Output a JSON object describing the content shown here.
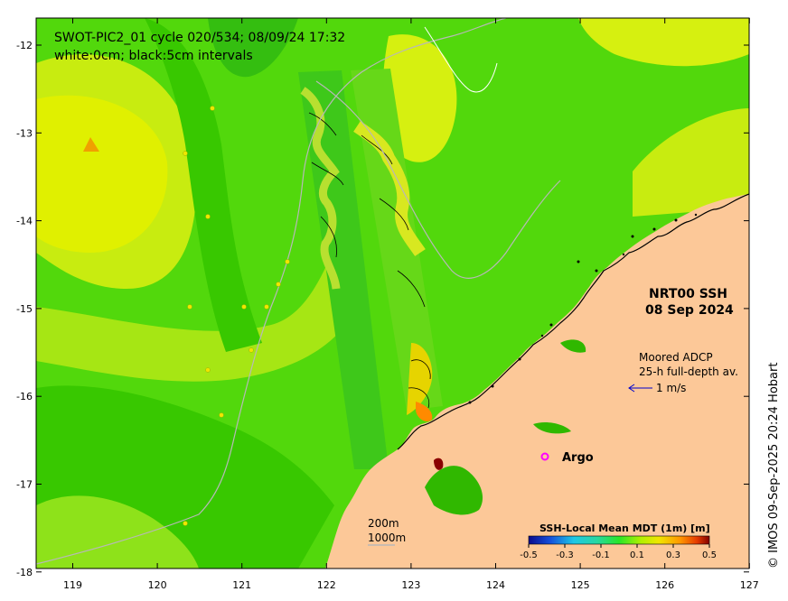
{
  "map": {
    "title_line1": "SWOT-PIC2_01 cycle 020/534; 08/09/24 17:32",
    "title_line2": "white:0cm; black:5cm intervals",
    "product": "NRT00 SSH",
    "date": "08 Sep 2024",
    "adcp_line1": "Moored ADCP",
    "adcp_line2": "25-h full-depth av.",
    "adcp_scale": "1 m/s",
    "argo_label": "Argo",
    "bathy_200": "200m",
    "bathy_1000": "1000m",
    "credit": "© IMOS 09-Sep-2025 20:24 Hobart",
    "x_ticks": [
      "119",
      "120",
      "121",
      "122",
      "123",
      "124",
      "125",
      "126",
      "127"
    ],
    "y_ticks": [
      "-12",
      "-13",
      "-14",
      "-15",
      "-16",
      "-17",
      "-18"
    ],
    "colors": {
      "land": "#fcc898",
      "sea_green": "#44d400",
      "sea_yellow": "#d8f000",
      "accent_argo": "#ff00ff",
      "adcp_arrow": "#0000cc"
    }
  },
  "colorbar": {
    "title": "SSH-Local Mean MDT (1m) [m]",
    "ticks": [
      "-0.5",
      "-0.3",
      "-0.1",
      "0.1",
      "0.3",
      "0.5"
    ],
    "values": [
      -0.5,
      -0.3,
      -0.1,
      0.1,
      0.3,
      0.5
    ],
    "colors": [
      "#0a0a8c",
      "#1450dc",
      "#1ec8e6",
      "#28e628",
      "#a0f000",
      "#f0e600",
      "#ff9600",
      "#e63c00",
      "#820000"
    ]
  }
}
